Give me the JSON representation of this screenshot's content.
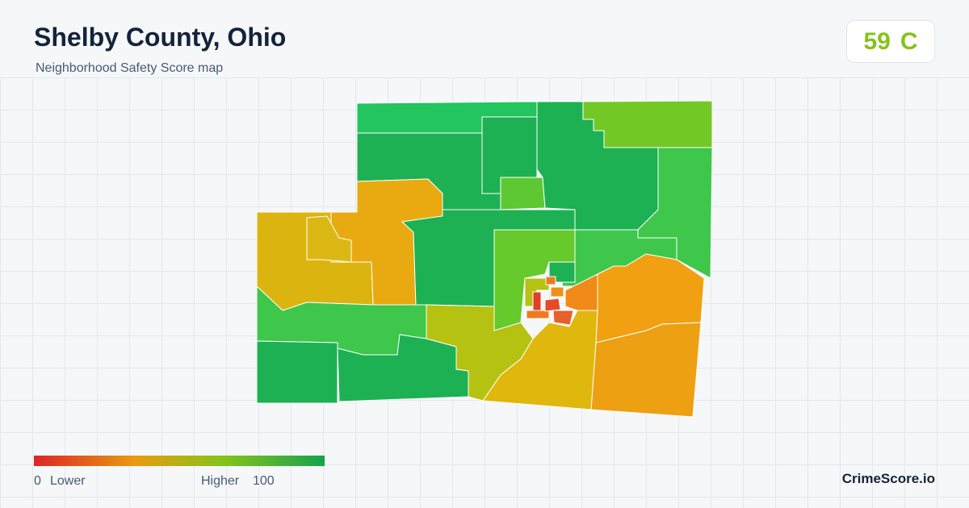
{
  "header": {
    "title": "Shelby County, Ohio",
    "subtitle": "Neighborhood Safety Score map"
  },
  "score": {
    "value": "59",
    "grade": "C"
  },
  "legend": {
    "min": "0",
    "min_label": "Lower",
    "max_label": "Higher",
    "max": "100"
  },
  "brand": "CrimeScore.io"
}
